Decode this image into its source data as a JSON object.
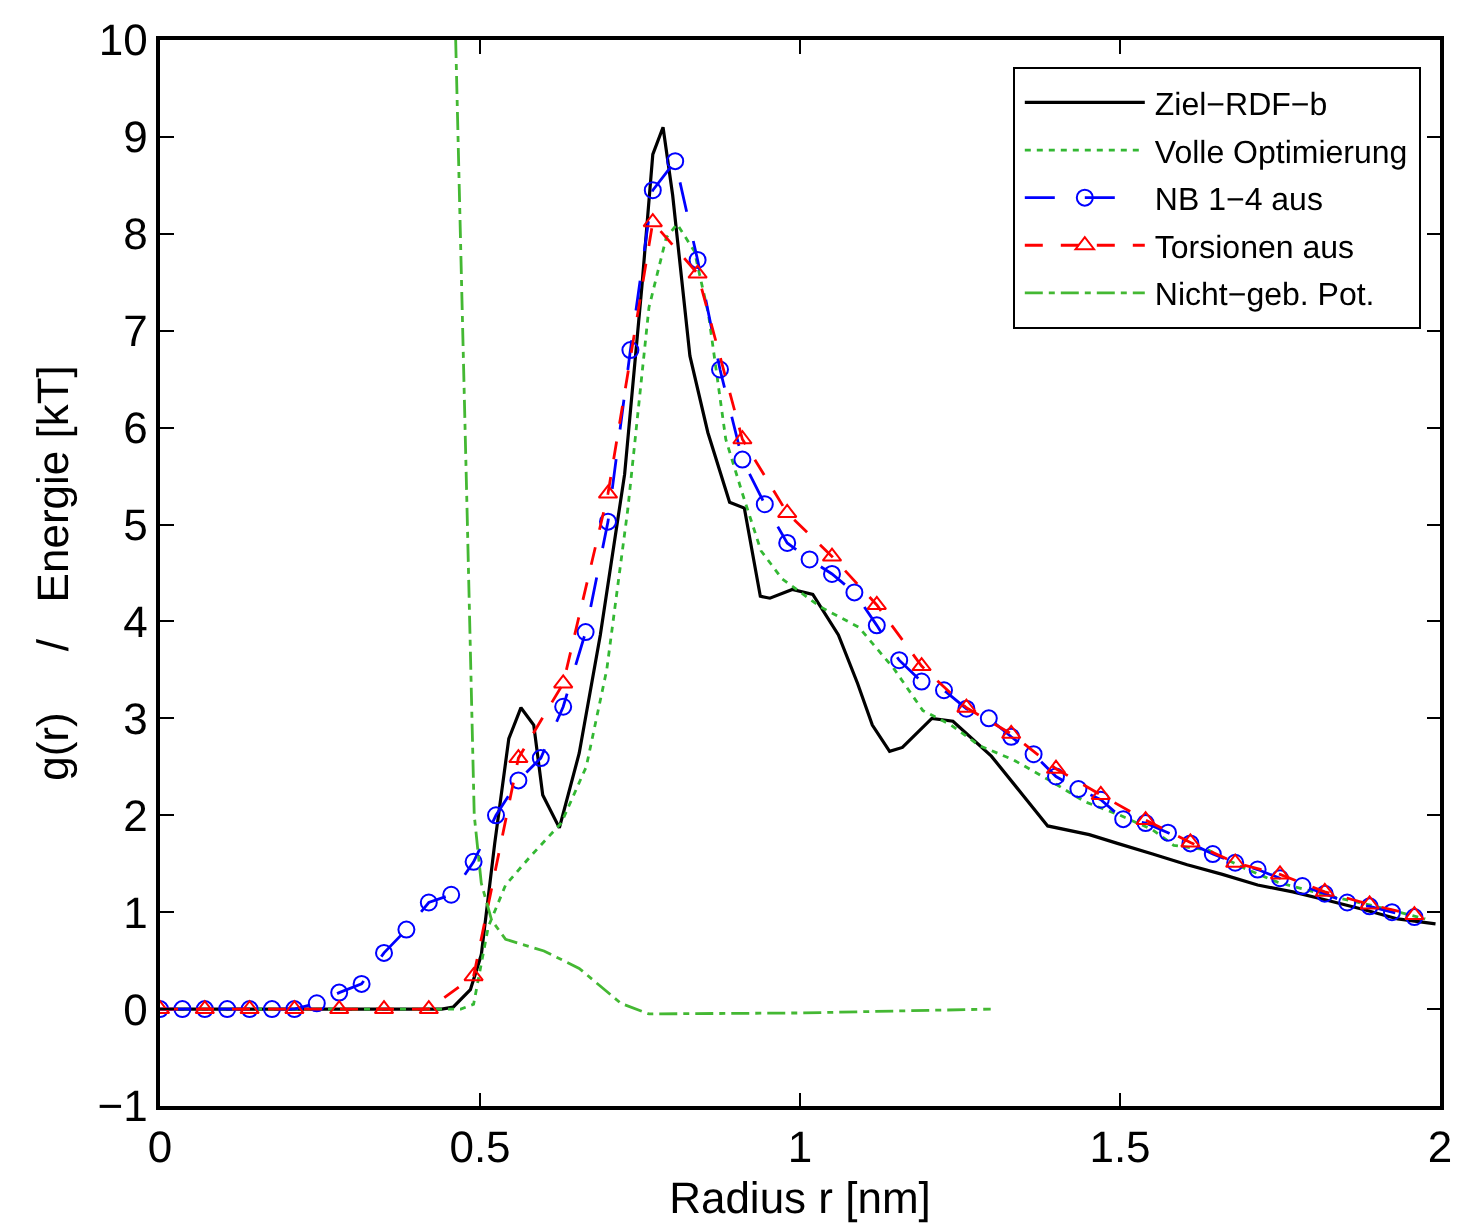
{
  "chart_data": {
    "type": "line",
    "xlabel": "Radius r [nm]",
    "ylabel": "g(r)     /   Energie [kT]",
    "xlim": [
      0,
      2
    ],
    "ylim": [
      -1,
      10
    ],
    "xticks": [
      0,
      0.5,
      1,
      1.5,
      2
    ],
    "yticks": [
      {
        "value": -1,
        "label": "−1"
      },
      0,
      1,
      2,
      3,
      4,
      5,
      6,
      7,
      8,
      9,
      10
    ],
    "legend": "top right",
    "series": [
      {
        "name": "Ziel−RDF−b",
        "color": "#000000",
        "line_style": "solid",
        "marker": "none",
        "x": [
          0,
          0.2,
          0.44,
          0.458,
          0.485,
          0.502,
          0.523,
          0.545,
          0.564,
          0.584,
          0.598,
          0.624,
          0.655,
          0.688,
          0.726,
          0.753,
          0.77,
          0.786,
          0.801,
          0.828,
          0.856,
          0.89,
          0.913,
          0.938,
          0.953,
          0.988,
          1.02,
          1.06,
          1.09,
          1.113,
          1.14,
          1.16,
          1.206,
          1.239,
          1.299,
          1.348,
          1.387,
          1.452,
          1.496,
          1.551,
          1.605,
          1.66,
          1.715,
          1.77,
          1.825,
          1.879,
          1.934,
          1.993
        ],
        "values": [
          0,
          0,
          0,
          0.02,
          0.2,
          0.56,
          1.71,
          2.79,
          3.11,
          2.93,
          2.21,
          1.87,
          2.64,
          3.86,
          5.52,
          7.46,
          8.82,
          9.1,
          8.4,
          6.74,
          5.95,
          5.23,
          5.17,
          4.26,
          4.24,
          4.33,
          4.28,
          3.86,
          3.36,
          2.93,
          2.66,
          2.7,
          3.0,
          2.97,
          2.61,
          2.21,
          1.89,
          1.8,
          1.71,
          1.6,
          1.49,
          1.39,
          1.28,
          1.21,
          1.12,
          1.03,
          0.93,
          0.88
        ]
      },
      {
        "name": "Volle Optimierung",
        "color": "#33b833",
        "line_style": "dotted",
        "marker": "none",
        "x": [
          0,
          0.2,
          0.47,
          0.49,
          0.513,
          0.54,
          0.578,
          0.627,
          0.666,
          0.698,
          0.731,
          0.764,
          0.791,
          0.808,
          0.835,
          0.857,
          0.884,
          0.911,
          0.939,
          0.972,
          1.032,
          1.092,
          1.147,
          1.192,
          1.236,
          1.28,
          1.334,
          1.39,
          1.445,
          1.5,
          1.551,
          1.584,
          1.638,
          1.692,
          1.746,
          1.825,
          1.9,
          1.977
        ],
        "values": [
          0,
          0,
          0,
          0.05,
          0.85,
          1.28,
          1.57,
          1.92,
          2.5,
          3.5,
          5.16,
          7.24,
          7.96,
          8.1,
          7.82,
          7.17,
          5.88,
          5.3,
          4.73,
          4.44,
          4.15,
          3.94,
          3.51,
          3.08,
          2.93,
          2.72,
          2.57,
          2.36,
          2.14,
          2.0,
          1.85,
          1.69,
          1.64,
          1.46,
          1.31,
          1.17,
          1.06,
          0.93
        ]
      },
      {
        "name": "NB 1−4 aus",
        "color": "#0000ff",
        "line_style": "longdash",
        "marker": "circle",
        "x": [
          0,
          0.035,
          0.07,
          0.105,
          0.14,
          0.175,
          0.21,
          0.245,
          0.28,
          0.315,
          0.35,
          0.385,
          0.42,
          0.455,
          0.49,
          0.525,
          0.56,
          0.595,
          0.63,
          0.665,
          0.7,
          0.735,
          0.77,
          0.805,
          0.84,
          0.875,
          0.91,
          0.945,
          0.98,
          1.015,
          1.05,
          1.085,
          1.12,
          1.155,
          1.19,
          1.225,
          1.26,
          1.295,
          1.33,
          1.365,
          1.4,
          1.435,
          1.47,
          1.505,
          1.54,
          1.575,
          1.61,
          1.645,
          1.68,
          1.715,
          1.75,
          1.785,
          1.82,
          1.855,
          1.89,
          1.925,
          1.96
        ],
        "values": [
          0,
          0,
          0,
          0,
          0,
          0,
          0,
          0.06,
          0.17,
          0.26,
          0.58,
          0.82,
          1.1,
          1.18,
          1.52,
          2.0,
          2.36,
          2.59,
          3.12,
          3.89,
          5.03,
          6.8,
          8.45,
          8.75,
          7.73,
          6.6,
          5.67,
          5.21,
          4.81,
          4.64,
          4.49,
          4.3,
          3.96,
          3.6,
          3.38,
          3.29,
          3.1,
          3.0,
          2.81,
          2.63,
          2.4,
          2.27,
          2.16,
          1.96,
          1.92,
          1.82,
          1.71,
          1.6,
          1.51,
          1.44,
          1.35,
          1.27,
          1.19,
          1.1,
          1.06,
          1.0,
          0.95
        ]
      },
      {
        "name": "Torsionen aus",
        "color": "#ff0000",
        "line_style": "dashed",
        "marker": "triangle",
        "x": [
          0,
          0.07,
          0.14,
          0.21,
          0.28,
          0.35,
          0.42,
          0.49,
          0.56,
          0.63,
          0.7,
          0.77,
          0.84,
          0.91,
          0.98,
          1.05,
          1.12,
          1.19,
          1.26,
          1.33,
          1.4,
          1.47,
          1.54,
          1.61,
          1.68,
          1.75,
          1.82,
          1.89,
          1.96
        ],
        "values": [
          0,
          0,
          0,
          0,
          0,
          0,
          0,
          0.34,
          2.59,
          3.36,
          5.32,
          8.12,
          7.59,
          5.88,
          5.12,
          4.67,
          4.17,
          3.54,
          3.11,
          2.84,
          2.48,
          2.21,
          1.95,
          1.72,
          1.51,
          1.39,
          1.21,
          1.08,
          0.97
        ]
      },
      {
        "name": "Nicht−geb. Pot.",
        "color": "#44b833",
        "line_style": "dashdot",
        "marker": "none",
        "x": [
          0.462,
          0.48,
          0.491,
          0.502,
          0.518,
          0.54,
          0.6,
          0.655,
          0.72,
          0.764,
          1.0,
          1.298
        ],
        "values": [
          10,
          5.09,
          2.0,
          1.3,
          0.92,
          0.72,
          0.6,
          0.42,
          0.06,
          -0.05,
          -0.04,
          0
        ]
      }
    ]
  }
}
